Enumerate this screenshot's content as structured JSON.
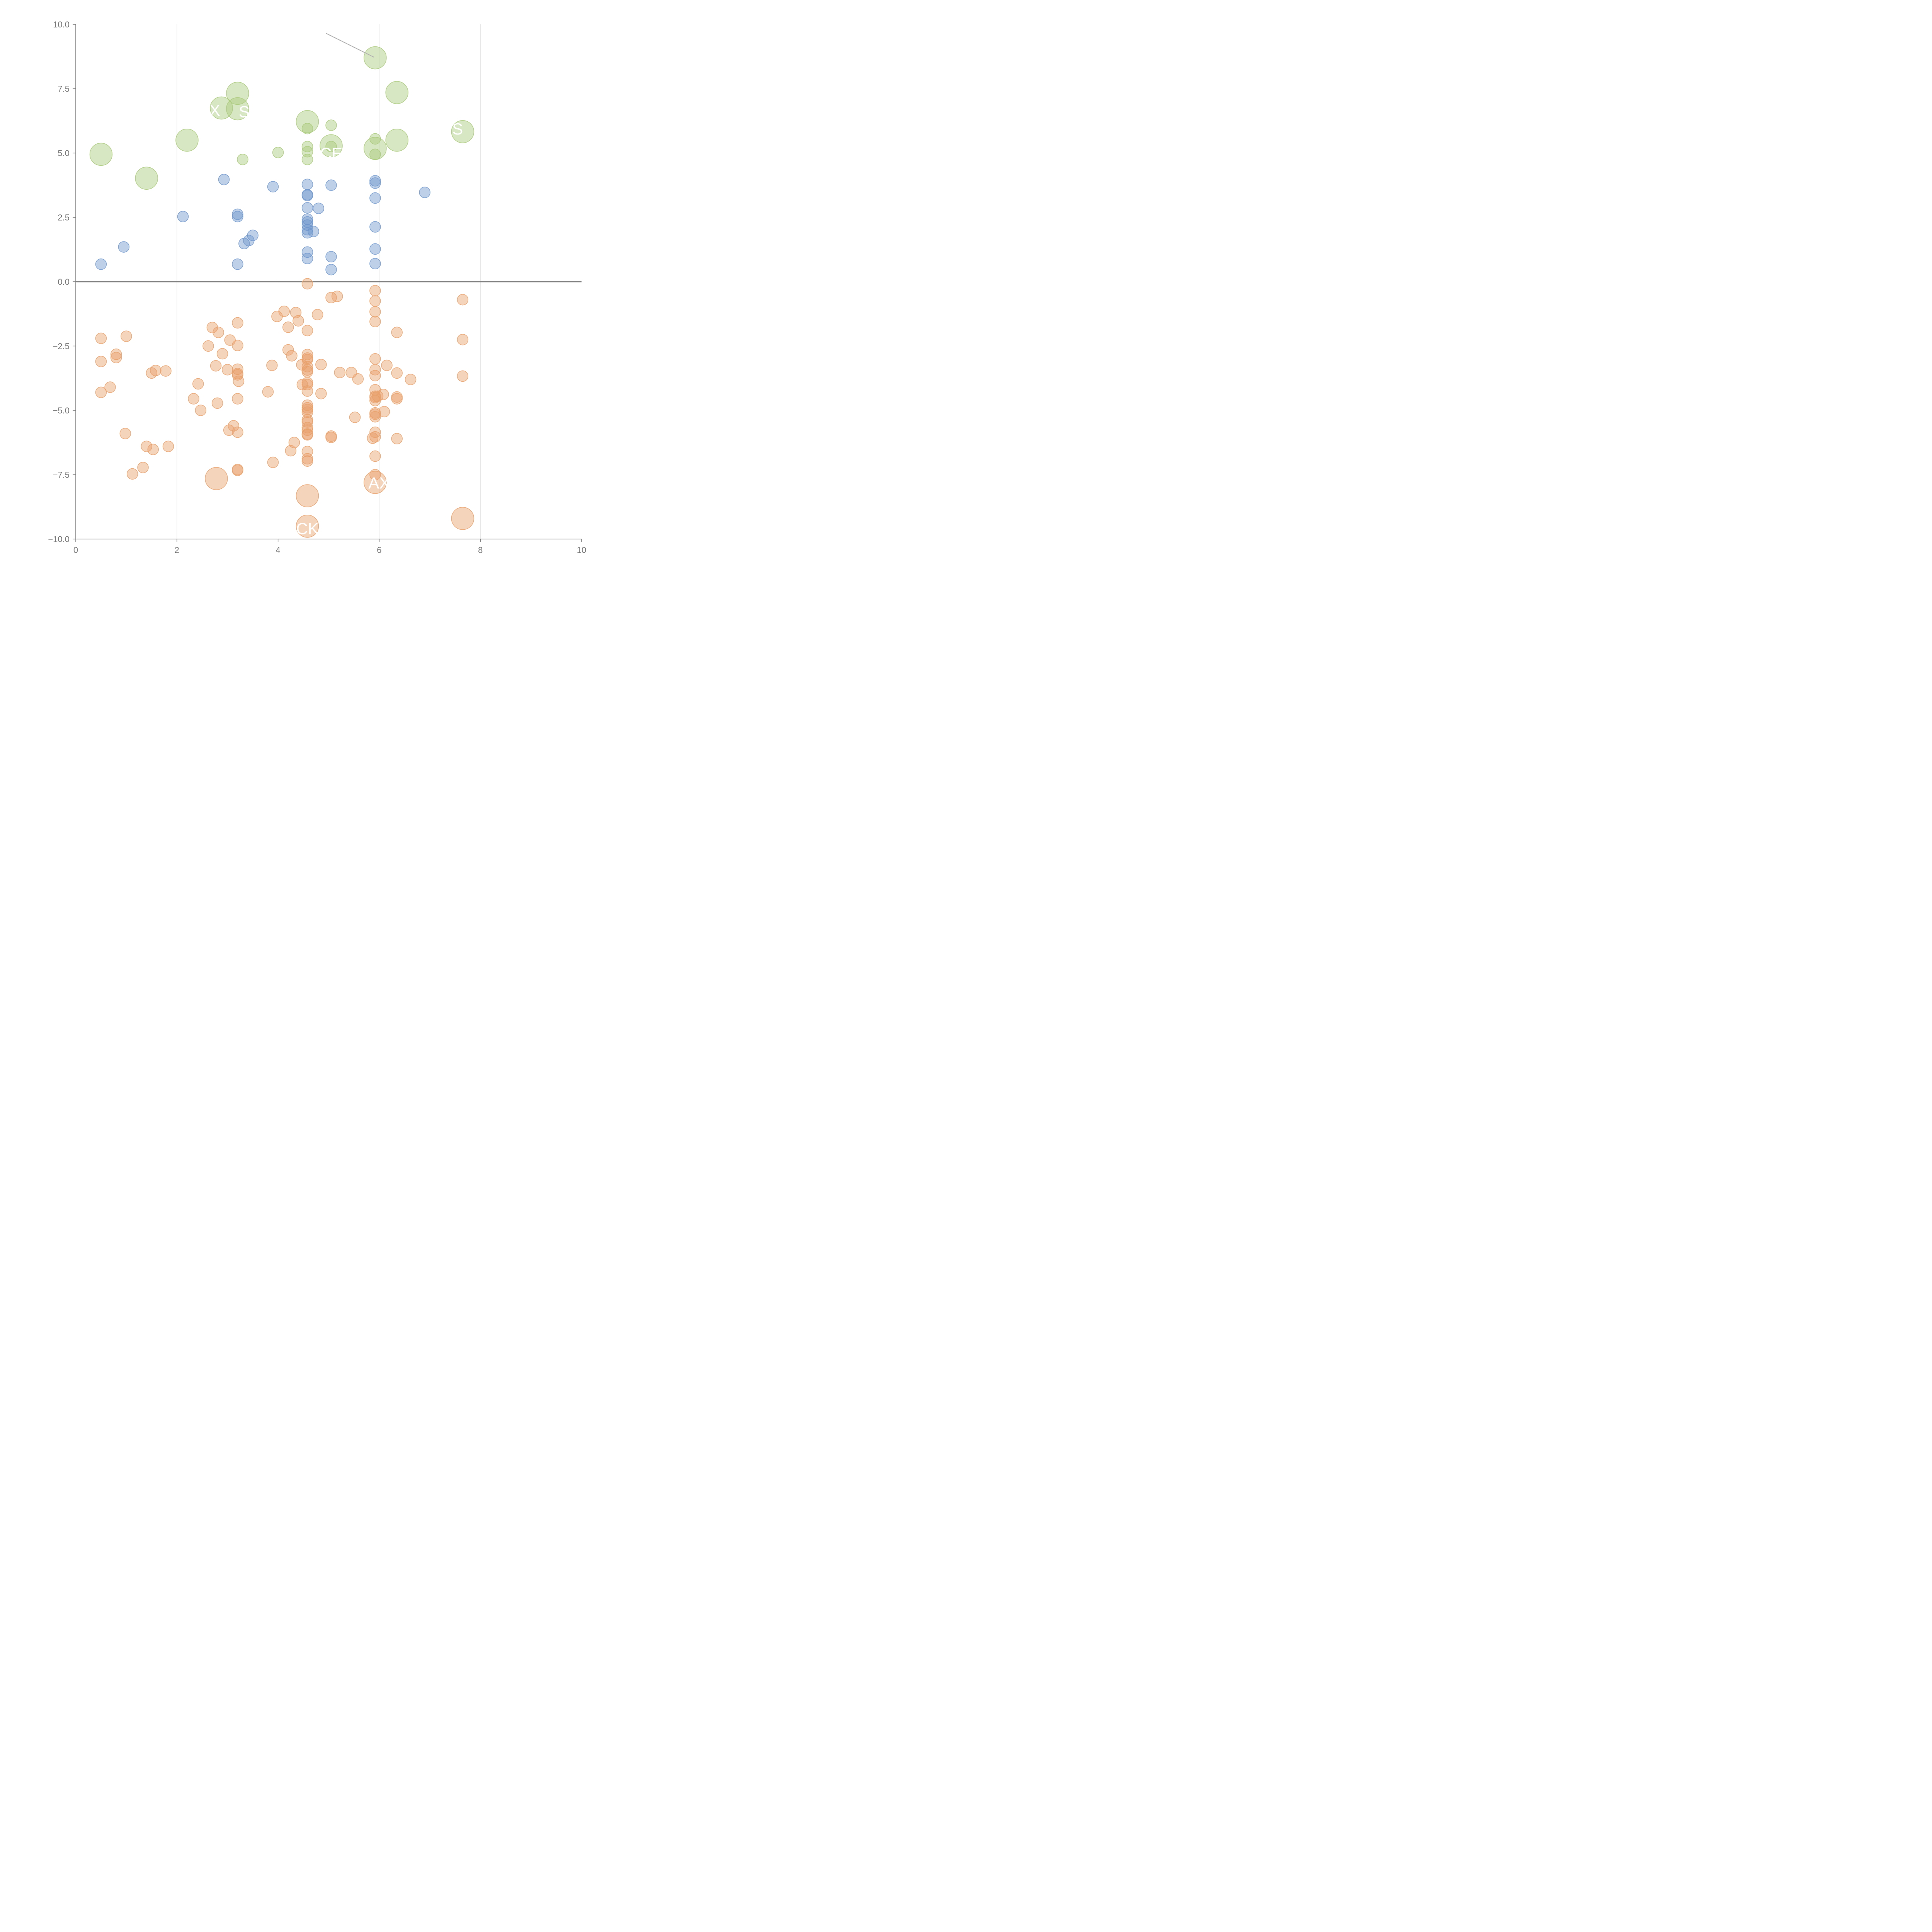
{
  "chart_data": {
    "type": "scatter",
    "title": "",
    "xlabel": "",
    "ylabel": "",
    "xlim": [
      0,
      10
    ],
    "ylim": [
      -10,
      10
    ],
    "grid": "vertical",
    "x_ticks": [
      "0",
      "2",
      "4",
      "6",
      "8",
      "10"
    ],
    "y_ticks": [
      "−10.0",
      "−7.5",
      "−5.0",
      "−2.5",
      "0.0",
      "2.5",
      "5.0",
      "7.5",
      "10.0"
    ],
    "colors": {
      "upper_large": "#a9c97a",
      "upper_small": "#6e97cc",
      "lower": "#e8a06a",
      "zero_line": "#808080",
      "grid": "#dddddd",
      "axis": "#777777",
      "connector": "#b0b0b0"
    },
    "series": [
      {
        "color": "#a9c97a",
        "size": "large",
        "points": [
          [
            5.92,
            8.7
          ],
          [
            3.2,
            7.32
          ],
          [
            6.35,
            7.35
          ],
          [
            2.88,
            6.75
          ],
          [
            3.2,
            6.72
          ],
          [
            4.58,
            6.22
          ],
          [
            7.65,
            5.83
          ],
          [
            2.2,
            5.5
          ],
          [
            6.35,
            5.5
          ],
          [
            5.05,
            5.28
          ],
          [
            5.92,
            5.18
          ],
          [
            0.5,
            4.95
          ],
          [
            1.4,
            4.02
          ]
        ]
      },
      {
        "color": "#a9c97a",
        "size": "small",
        "points": [
          [
            4.58,
            5.95
          ],
          [
            5.05,
            6.08
          ],
          [
            5.92,
            5.55
          ],
          [
            4.58,
            5.25
          ],
          [
            5.05,
            5.25
          ],
          [
            4.58,
            5.05
          ],
          [
            4.0,
            5.02
          ],
          [
            5.92,
            4.95
          ],
          [
            3.3,
            4.75
          ],
          [
            4.58,
            4.75
          ]
        ]
      },
      {
        "color": "#6e97cc",
        "size": "small",
        "points": [
          [
            2.93,
            3.97
          ],
          [
            5.92,
            3.92
          ],
          [
            5.92,
            3.83
          ],
          [
            4.58,
            3.78
          ],
          [
            5.05,
            3.75
          ],
          [
            3.9,
            3.69
          ],
          [
            6.9,
            3.47
          ],
          [
            4.58,
            3.38
          ],
          [
            4.58,
            3.35
          ],
          [
            5.92,
            3.25
          ],
          [
            4.58,
            2.87
          ],
          [
            4.8,
            2.85
          ],
          [
            3.2,
            2.62
          ],
          [
            2.12,
            2.53
          ],
          [
            3.2,
            2.53
          ],
          [
            4.58,
            2.43
          ],
          [
            4.58,
            2.32
          ],
          [
            4.58,
            2.2
          ],
          [
            5.92,
            2.13
          ],
          [
            4.58,
            2.02
          ],
          [
            4.7,
            1.95
          ],
          [
            4.58,
            1.9
          ],
          [
            3.5,
            1.8
          ],
          [
            3.42,
            1.6
          ],
          [
            3.33,
            1.48
          ],
          [
            0.95,
            1.35
          ],
          [
            5.92,
            1.27
          ],
          [
            4.58,
            1.15
          ],
          [
            5.05,
            0.97
          ],
          [
            4.58,
            0.9
          ],
          [
            0.5,
            0.68
          ],
          [
            3.2,
            0.68
          ],
          [
            5.92,
            0.7
          ],
          [
            5.05,
            0.47
          ]
        ]
      },
      {
        "color": "#e8a06a",
        "size": "small",
        "points": [
          [
            4.58,
            -0.08
          ],
          [
            5.92,
            -0.35
          ],
          [
            5.05,
            -0.62
          ],
          [
            5.17,
            -0.57
          ],
          [
            7.65,
            -0.7
          ],
          [
            5.92,
            -0.75
          ],
          [
            4.12,
            -1.15
          ],
          [
            4.35,
            -1.2
          ],
          [
            5.92,
            -1.17
          ],
          [
            4.78,
            -1.28
          ],
          [
            3.98,
            -1.35
          ],
          [
            4.4,
            -1.52
          ],
          [
            5.92,
            -1.55
          ],
          [
            3.2,
            -1.6
          ],
          [
            2.7,
            -1.78
          ],
          [
            4.2,
            -1.77
          ],
          [
            4.58,
            -1.9
          ],
          [
            2.82,
            -1.97
          ],
          [
            6.35,
            -1.97
          ],
          [
            0.5,
            -2.2
          ],
          [
            1.0,
            -2.12
          ],
          [
            7.65,
            -2.25
          ],
          [
            3.05,
            -2.27
          ],
          [
            2.62,
            -2.5
          ],
          [
            3.2,
            -2.48
          ],
          [
            4.2,
            -2.65
          ],
          [
            0.8,
            -2.82
          ],
          [
            2.9,
            -2.8
          ],
          [
            0.8,
            -2.95
          ],
          [
            4.58,
            -2.83
          ],
          [
            4.27,
            -2.88
          ],
          [
            4.58,
            -2.97
          ],
          [
            5.92,
            -3.0
          ],
          [
            4.58,
            -3.03
          ],
          [
            0.5,
            -3.1
          ],
          [
            4.47,
            -3.23
          ],
          [
            4.85,
            -3.22
          ],
          [
            3.88,
            -3.25
          ],
          [
            6.15,
            -3.25
          ],
          [
            2.77,
            -3.27
          ],
          [
            4.58,
            -3.3
          ],
          [
            3.2,
            -3.4
          ],
          [
            3.0,
            -3.42
          ],
          [
            5.92,
            -3.42
          ],
          [
            4.58,
            -3.43
          ],
          [
            1.58,
            -3.45
          ],
          [
            1.78,
            -3.47
          ],
          [
            4.58,
            -3.5
          ],
          [
            5.22,
            -3.53
          ],
          [
            5.45,
            -3.53
          ],
          [
            6.35,
            -3.55
          ],
          [
            3.2,
            -3.57
          ],
          [
            1.5,
            -3.55
          ],
          [
            3.2,
            -3.62
          ],
          [
            5.92,
            -3.65
          ],
          [
            7.65,
            -3.67
          ],
          [
            5.58,
            -3.78
          ],
          [
            6.62,
            -3.8
          ],
          [
            3.22,
            -3.87
          ],
          [
            4.58,
            -3.92
          ],
          [
            2.42,
            -3.97
          ],
          [
            4.58,
            -4.0
          ],
          [
            4.48,
            -4.0
          ],
          [
            0.68,
            -4.1
          ],
          [
            5.92,
            -4.2
          ],
          [
            4.58,
            -4.25
          ],
          [
            0.5,
            -4.3
          ],
          [
            3.8,
            -4.28
          ],
          [
            4.85,
            -4.35
          ],
          [
            6.08,
            -4.38
          ],
          [
            5.92,
            -4.45
          ],
          [
            5.97,
            -4.45
          ],
          [
            6.35,
            -4.48
          ],
          [
            5.92,
            -4.5
          ],
          [
            6.35,
            -4.55
          ],
          [
            3.2,
            -4.55
          ],
          [
            2.33,
            -4.55
          ],
          [
            5.92,
            -4.62
          ],
          [
            2.8,
            -4.72
          ],
          [
            4.58,
            -4.8
          ],
          [
            4.58,
            -4.9
          ],
          [
            4.58,
            -4.97
          ],
          [
            2.47,
            -5.0
          ],
          [
            4.58,
            -5.07
          ],
          [
            6.1,
            -5.05
          ],
          [
            5.92,
            -5.1
          ],
          [
            5.92,
            -5.15
          ],
          [
            5.92,
            -5.25
          ],
          [
            5.52,
            -5.27
          ],
          [
            4.58,
            -5.37
          ],
          [
            4.58,
            -5.45
          ],
          [
            3.12,
            -5.6
          ],
          [
            4.58,
            -5.67
          ],
          [
            4.58,
            -5.77
          ],
          [
            3.03,
            -5.77
          ],
          [
            3.2,
            -5.85
          ],
          [
            5.92,
            -5.85
          ],
          [
            0.98,
            -5.9
          ],
          [
            4.58,
            -5.92
          ],
          [
            4.58,
            -5.95
          ],
          [
            5.05,
            -6.0
          ],
          [
            5.05,
            -6.05
          ],
          [
            5.92,
            -6.03
          ],
          [
            5.87,
            -6.08
          ],
          [
            6.35,
            -6.1
          ],
          [
            4.32,
            -6.25
          ],
          [
            1.4,
            -6.4
          ],
          [
            1.83,
            -6.4
          ],
          [
            1.53,
            -6.52
          ],
          [
            4.25,
            -6.57
          ],
          [
            4.58,
            -6.6
          ],
          [
            5.92,
            -6.78
          ],
          [
            4.58,
            -6.88
          ],
          [
            4.58,
            -6.97
          ],
          [
            3.9,
            -7.02
          ],
          [
            1.33,
            -7.22
          ],
          [
            3.2,
            -7.3
          ],
          [
            3.2,
            -7.33
          ],
          [
            1.12,
            -7.47
          ],
          [
            5.92,
            -7.5
          ]
        ]
      },
      {
        "color": "#e8a06a",
        "size": "large",
        "points": [
          [
            2.78,
            -7.65
          ],
          [
            5.92,
            -7.8
          ],
          [
            4.58,
            -8.32
          ],
          [
            7.65,
            -9.2
          ],
          [
            4.58,
            -9.5
          ]
        ]
      }
    ],
    "annotations": [
      {
        "text": "X",
        "x": 2.75,
        "y": 6.65
      },
      {
        "text": "S",
        "x": 3.33,
        "y": 6.6
      },
      {
        "text": "S",
        "x": 7.55,
        "y": 5.93
      },
      {
        "text": "CE",
        "x": 5.05,
        "y": 4.98
      },
      {
        "text": "AX",
        "x": 6.0,
        "y": -7.83
      },
      {
        "text": "CK",
        "x": 4.58,
        "y": -9.6
      }
    ],
    "connector": {
      "x1": 4.95,
      "y1": 9.65,
      "x2": 5.9,
      "y2": 8.72
    }
  }
}
